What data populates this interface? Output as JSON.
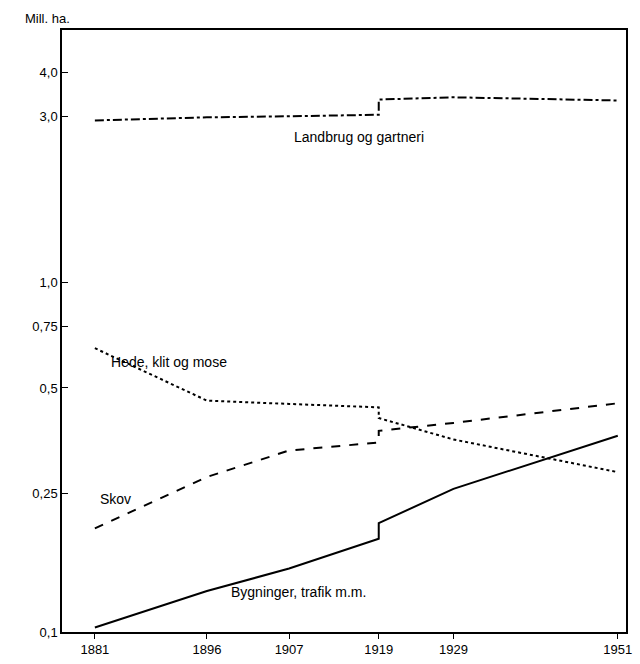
{
  "chart_data": {
    "type": "line",
    "y_label": "Mill. ha.",
    "log": "y",
    "grid": false,
    "x": [
      1881,
      1896,
      1907,
      1919,
      1919,
      1929,
      1951
    ],
    "series": [
      {
        "name": "Landbrug og gartneri",
        "color": "#000000",
        "line_style": "dashdot",
        "values": [
          2.92,
          2.98,
          3.0,
          3.03,
          3.35,
          3.4,
          3.33
        ]
      },
      {
        "name": "Hede, klit og mose",
        "color": "#000000",
        "line_style": "dot",
        "values": [
          0.65,
          0.46,
          0.45,
          0.44,
          0.41,
          0.356,
          0.287
        ]
      },
      {
        "name": "Skov",
        "color": "#000000",
        "line_style": "dash",
        "values": [
          0.198,
          0.278,
          0.331,
          0.349,
          0.377,
          0.397,
          0.452
        ]
      },
      {
        "name": "Bygninger, trafik m.m.",
        "color": "#000000",
        "line_style": "solid",
        "values": [
          0.103,
          0.131,
          0.152,
          0.185,
          0.205,
          0.257,
          0.365
        ]
      }
    ],
    "xlim": [
      1876.6,
      1952.1
    ],
    "xticks": [
      1881,
      1896,
      1907,
      1919,
      1929,
      1951
    ],
    "ylim": [
      0.1,
      5.3
    ],
    "yticks": [
      {
        "value": 0.1,
        "label": "0,1"
      },
      {
        "value": 0.25,
        "label": "0,25"
      },
      {
        "value": 0.5,
        "label": "0,5"
      },
      {
        "value": 0.75,
        "label": "0,75"
      },
      {
        "value": 1.0,
        "label": "1,0"
      },
      {
        "value": 3.0,
        "label": "3,0"
      },
      {
        "value": 4.0,
        "label": "4,0"
      }
    ]
  }
}
